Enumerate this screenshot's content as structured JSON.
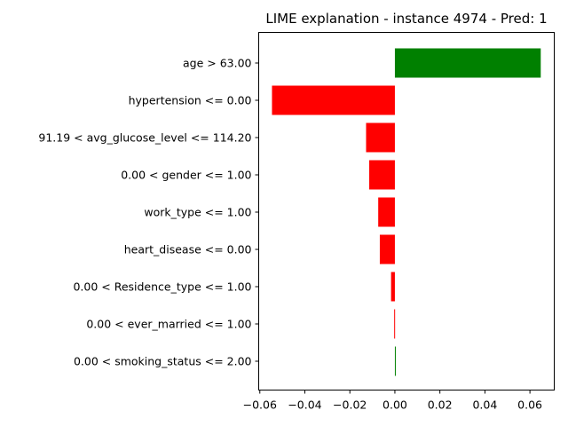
{
  "chart_data": {
    "type": "bar",
    "orientation": "horizontal",
    "title": "LIME explanation - instance 4974 - Pred: 1",
    "xlabel": "",
    "ylabel": "",
    "categories": [
      "age > 63.00",
      "hypertension <= 0.00",
      "91.19 < avg_glucose_level <= 114.20",
      "0.00 < gender <= 1.00",
      "work_type <= 1.00",
      "heart_disease <= 0.00",
      "0.00 < Residence_type <= 1.00",
      "0.00 < ever_married <= 1.00",
      "0.00 < smoking_status <= 2.00"
    ],
    "values": [
      0.0648,
      -0.0546,
      -0.0128,
      -0.0114,
      -0.0074,
      -0.0067,
      -0.0017,
      -0.0003,
      0.0002
    ],
    "xlim": [
      -0.0605,
      0.0708
    ],
    "xticks": [
      -0.06,
      -0.04,
      -0.02,
      0.0,
      0.02,
      0.04,
      0.06
    ],
    "xtick_labels": [
      "−0.06",
      "−0.04",
      "−0.02",
      "0.00",
      "0.02",
      "0.04",
      "0.06"
    ],
    "positive_color": "#008000",
    "negative_color": "#ff0000",
    "grid": false,
    "legend": "none"
  }
}
